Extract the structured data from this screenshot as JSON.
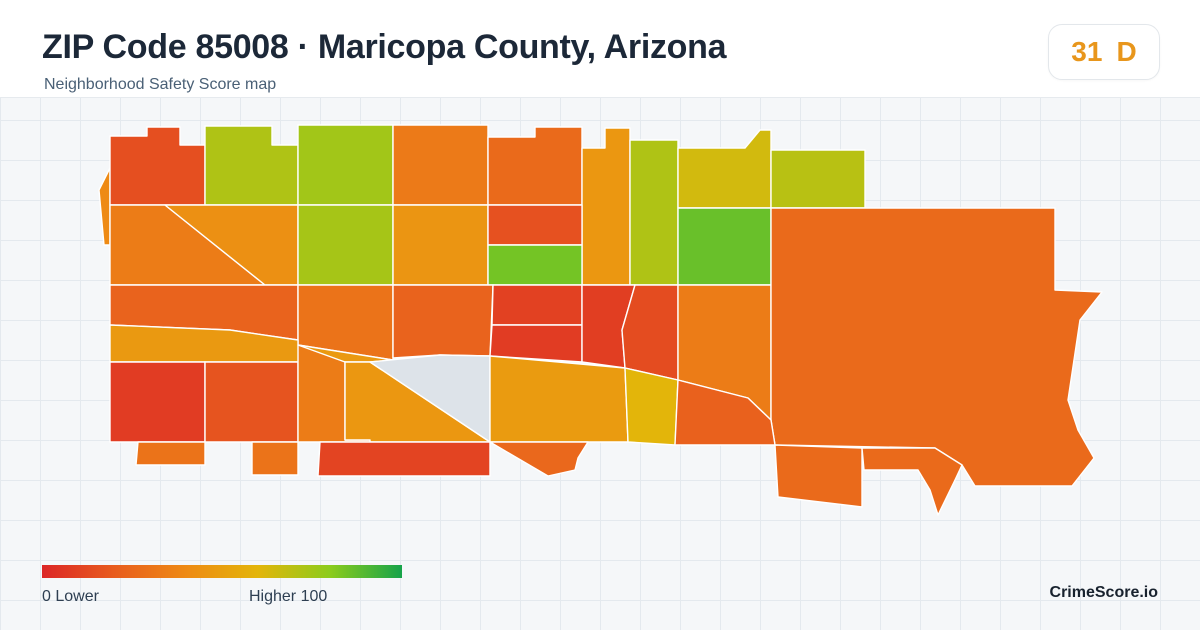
{
  "header": {
    "title": "ZIP Code 85008 · Maricopa County, Arizona",
    "subtitle": "Neighborhood Safety Score map"
  },
  "score": {
    "value": "31",
    "grade": "D",
    "color": "#e8961c"
  },
  "map": {
    "scale_min": 0,
    "scale_max": 100,
    "no_data_color": "#dde3e9",
    "regions": [
      {
        "name": "nw-outlier",
        "score": 40
      },
      {
        "name": "nw-top-1",
        "score": 15
      },
      {
        "name": "nw-top-2",
        "score": 72
      },
      {
        "name": "nw-top-3",
        "score": 75
      },
      {
        "name": "n-top-4",
        "score": 33
      },
      {
        "name": "n-top-5",
        "score": 26
      },
      {
        "name": "n-top-6",
        "score": 46
      },
      {
        "name": "n-top-7",
        "score": 72
      },
      {
        "name": "ne-top-8",
        "score": 64
      },
      {
        "name": "ne-top-9",
        "score": 70
      },
      {
        "name": "nw-row2-1",
        "score": 34
      },
      {
        "name": "nw-row2-2",
        "score": 43
      },
      {
        "name": "n-row2-3",
        "score": 74
      },
      {
        "name": "n-row2-4",
        "score": 45
      },
      {
        "name": "n-row2-5",
        "score": 16
      },
      {
        "name": "n-row2-6",
        "score": 84
      },
      {
        "name": "ne-row2-7",
        "score": 86
      },
      {
        "name": "w-row3-1",
        "score": 23
      },
      {
        "name": "w-row3-2",
        "score": 30
      },
      {
        "name": "c-row3-3",
        "score": 23
      },
      {
        "name": "c-row3-4",
        "score": 10
      },
      {
        "name": "c-row3-5",
        "score": 8
      },
      {
        "name": "c-row3-6",
        "score": 9
      },
      {
        "name": "c-row3-7",
        "score": 14
      },
      {
        "name": "c-row3-8",
        "score": 34
      },
      {
        "name": "e-large",
        "score": 26
      },
      {
        "name": "w-band",
        "score": 47
      },
      {
        "name": "sw-1",
        "score": 8
      },
      {
        "name": "sw-2",
        "score": 17
      },
      {
        "name": "s-3",
        "score": 34
      },
      {
        "name": "s-4",
        "score": 46
      },
      {
        "name": "s-no-data",
        "score": null
      },
      {
        "name": "s-5",
        "score": 48
      },
      {
        "name": "s-6",
        "score": 60
      },
      {
        "name": "s-7",
        "score": 22
      },
      {
        "name": "s-tab-1",
        "score": 30
      },
      {
        "name": "s-tab-2",
        "score": 30
      },
      {
        "name": "s-tab-3",
        "score": 11
      },
      {
        "name": "s-tab-4",
        "score": 25
      },
      {
        "name": "se-1",
        "score": 26
      },
      {
        "name": "se-2",
        "score": 26
      }
    ]
  },
  "legend": {
    "low_label": "0  Lower",
    "high_label": "Higher  100",
    "colors": [
      "#dc2626",
      "#e85c1e",
      "#ee8a14",
      "#e3b50a",
      "#8ccc1c",
      "#16a34a"
    ]
  },
  "brand": "CrimeScore.io"
}
